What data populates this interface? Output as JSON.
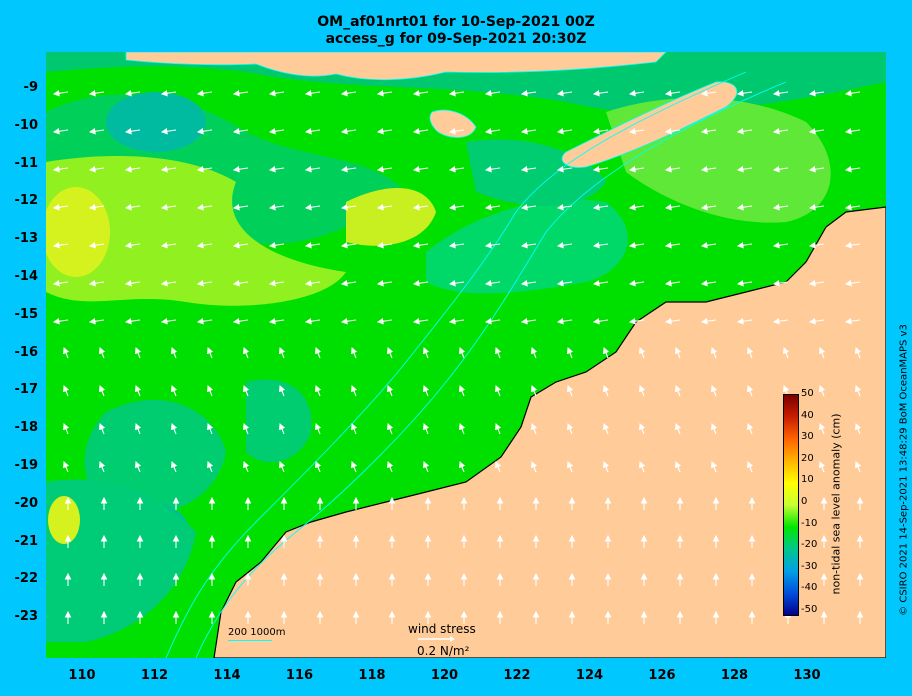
{
  "title_line1": "OM_af01nrt01 for 10-Sep-2021 00Z",
  "title_line2": "access_g for 09-Sep-2021 20:30Z",
  "y_ticks": [
    "-9",
    "-10",
    "-11",
    "-12",
    "-13",
    "-14",
    "-15",
    "-16",
    "-17",
    "-18",
    "-19",
    "-20",
    "-21",
    "-22",
    "-23"
  ],
  "x_ticks": [
    "110",
    "112",
    "114",
    "116",
    "118",
    "120",
    "122",
    "124",
    "126",
    "128",
    "130"
  ],
  "colorbar": {
    "label": "non-tidal sea level anomaly (cm)",
    "ticks": [
      "50",
      "40",
      "30",
      "20",
      "10",
      "0",
      "-10",
      "-20",
      "-30",
      "-40",
      "-50"
    ],
    "colors": [
      "#7a0000",
      "#c81e00",
      "#ff6400",
      "#ffb400",
      "#ffff00",
      "#c8ff32",
      "#00e600",
      "#00c88c",
      "#00a0e6",
      "#0050dc",
      "#00008c"
    ]
  },
  "contour_legend": "200  1000m",
  "wind_stress": {
    "title": "wind stress",
    "value": "0.2 N/m²"
  },
  "credit": "© CSIRO 2021  14-Sep-2021 13:48:29 BoM OceanMAPS v3",
  "colors": {
    "background": "#00c8ff",
    "land": "#ffcc99",
    "shelf": "#c8a064"
  }
}
